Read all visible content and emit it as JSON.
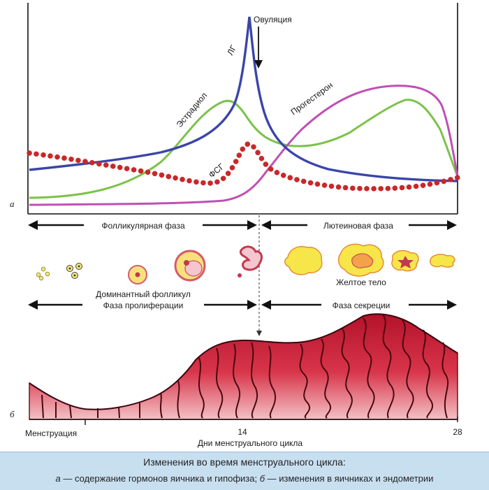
{
  "panel_a": {
    "letter": "а",
    "labels": {
      "ovulation": "Овуляция",
      "lh": "ЛГ",
      "estradiol": "Эстрадиол",
      "progesterone": "Прогестерон",
      "fsh": "ФСГ"
    },
    "colors": {
      "lh": "#3a45a8",
      "estradiol": "#7cc24a",
      "progesterone": "#c04fb4",
      "fsh": "#c8282a"
    }
  },
  "phases": {
    "follicular": "Фолликулярная фаза",
    "luteal": "Лютеиновая фаза",
    "dominant_follicle": "Доминантный фолликул",
    "corpus_luteum": "Желтое тело",
    "proliferation": "Фаза пролиферации",
    "secretion": "Фаза секреции"
  },
  "panel_b": {
    "letter": "б",
    "axis": {
      "start": "Менструация",
      "mid": "14",
      "end": "28",
      "title": "Дни менструального цикла"
    }
  },
  "caption": {
    "title": "Изменения во время менструального цикла:",
    "line_a_prefix": "а",
    "line_a_text": " — содержание гормонов яичника и гипофиза; ",
    "line_b_prefix": "б",
    "line_b_text": " — изменения в яичниках и эндометрии"
  }
}
